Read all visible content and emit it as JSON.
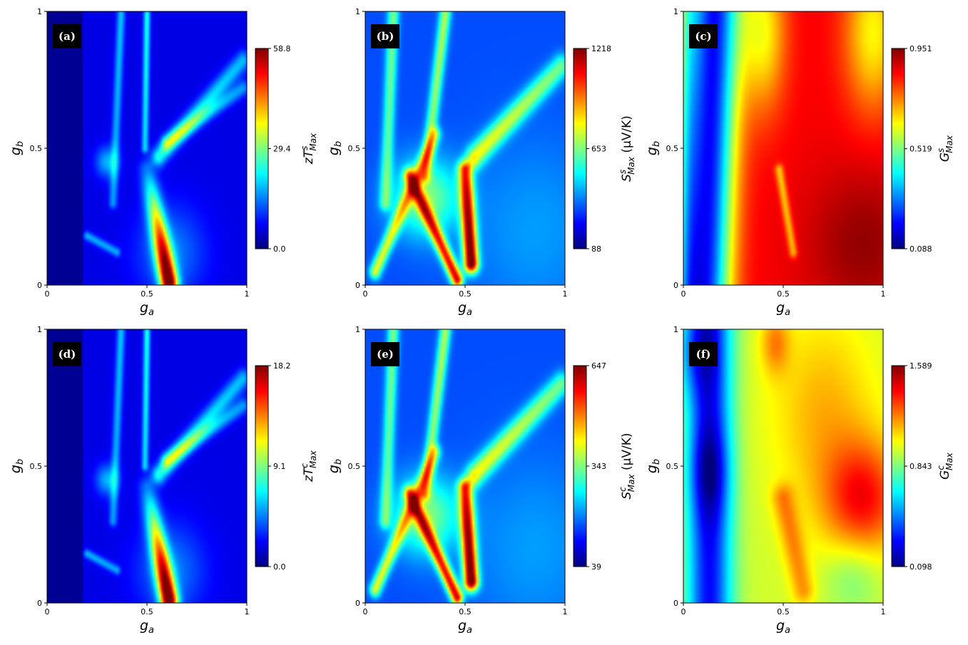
{
  "colormap": "jet",
  "colors": {
    "jet": [
      "#00007f",
      "#0000ff",
      "#007fff",
      "#00ffff",
      "#7fff7f",
      "#ffff00",
      "#ff7f00",
      "#ff0000",
      "#7f0000"
    ]
  },
  "chart_data": [
    {
      "type": "heatmap",
      "panel_label": "(a)",
      "xlabel": "g",
      "xlabel_sub": "a",
      "ylabel": "g",
      "ylabel_sub": "b",
      "xlim": [
        0,
        1
      ],
      "ylim": [
        0,
        1
      ],
      "xticks": [
        "0",
        "0.5",
        "1"
      ],
      "yticks": [
        "0",
        "0.5",
        "1"
      ],
      "colorbar": {
        "label": "zT",
        "label_sup": "s",
        "label_sub": "Max",
        "label_unit": "",
        "min": 0.0,
        "max": 58.8,
        "ticks": [
          "0.0",
          "29.4",
          "58.8"
        ]
      },
      "field": {
        "base": 0.1,
        "features": [
          {
            "kind": "ridge",
            "x0": 0.61,
            "y0": 0.01,
            "x1": 0.5,
            "y1": 0.42,
            "width": 0.03,
            "peak": 0.95,
            "fade": 0.85
          },
          {
            "kind": "ridge",
            "x0": 0.56,
            "y0": 0.47,
            "x1": 0.98,
            "y1": 0.82,
            "width": 0.025,
            "peak": 0.3,
            "fade": 0.3
          },
          {
            "kind": "ridge",
            "x0": 0.6,
            "y0": 0.52,
            "x1": 0.98,
            "y1": 0.72,
            "width": 0.02,
            "peak": 0.25,
            "fade": 0.3
          },
          {
            "kind": "ridge",
            "x0": 0.5,
            "y0": 0.99,
            "x1": 0.49,
            "y1": 0.5,
            "width": 0.012,
            "peak": 0.3,
            "fade": 0.2
          },
          {
            "kind": "ridge",
            "x0": 0.37,
            "y0": 0.99,
            "x1": 0.33,
            "y1": 0.3,
            "width": 0.015,
            "peak": 0.22,
            "fade": 0.2
          },
          {
            "kind": "ridge",
            "x0": 0.2,
            "y0": 0.18,
            "x1": 0.35,
            "y1": 0.12,
            "width": 0.012,
            "peak": 0.2,
            "fade": 0.1
          },
          {
            "kind": "blob",
            "x": 0.3,
            "y": 0.45,
            "rx": 0.04,
            "ry": 0.04,
            "peak": 0.2
          },
          {
            "kind": "blob",
            "x": 0.62,
            "y": 0.12,
            "rx": 0.12,
            "ry": 0.12,
            "peak": 0.15
          },
          {
            "kind": "dark",
            "x0": 0.0,
            "x1": 0.18,
            "peak": 0.08
          }
        ]
      }
    },
    {
      "type": "heatmap",
      "panel_label": "(b)",
      "xlabel": "g",
      "xlabel_sub": "a",
      "ylabel": "g",
      "ylabel_sub": "b",
      "xlim": [
        0,
        1
      ],
      "ylim": [
        0,
        1
      ],
      "xticks": [
        "0",
        "0.5",
        "1"
      ],
      "yticks": [
        "0",
        "0.5",
        "1"
      ],
      "colorbar": {
        "label": "S",
        "label_sup": "s",
        "label_sub": "Max",
        "label_unit": " (μV/K)",
        "min": 88,
        "max": 1218,
        "ticks": [
          "88",
          "653",
          "1218"
        ]
      },
      "field": {
        "base": 0.2,
        "features": [
          {
            "kind": "ridge",
            "x0": 0.53,
            "y0": 0.08,
            "x1": 0.5,
            "y1": 0.42,
            "width": 0.025,
            "peak": 0.85,
            "fade": 0.3
          },
          {
            "kind": "ridge",
            "x0": 0.46,
            "y0": 0.02,
            "x1": 0.22,
            "y1": 0.4,
            "width": 0.02,
            "peak": 0.7,
            "fade": 0.4
          },
          {
            "kind": "ridge",
            "x0": 0.05,
            "y0": 0.05,
            "x1": 0.35,
            "y1": 0.55,
            "width": 0.02,
            "peak": 0.4,
            "fade": 0.3
          },
          {
            "kind": "ridge",
            "x0": 0.55,
            "y0": 0.47,
            "x1": 0.98,
            "y1": 0.8,
            "width": 0.03,
            "peak": 0.4,
            "fade": 0.3
          },
          {
            "kind": "ridge",
            "x0": 0.4,
            "y0": 0.99,
            "x1": 0.3,
            "y1": 0.4,
            "width": 0.02,
            "peak": 0.35,
            "fade": 0.2
          },
          {
            "kind": "ridge",
            "x0": 0.14,
            "y0": 0.99,
            "x1": 0.1,
            "y1": 0.3,
            "width": 0.02,
            "peak": 0.3,
            "fade": 0.2
          },
          {
            "kind": "blob",
            "x": 0.3,
            "y": 0.32,
            "rx": 0.12,
            "ry": 0.1,
            "peak": 0.3
          },
          {
            "kind": "blob",
            "x": 0.85,
            "y": 0.2,
            "rx": 0.25,
            "ry": 0.25,
            "peak": 0.08
          }
        ]
      }
    },
    {
      "type": "heatmap",
      "panel_label": "(c)",
      "xlabel": "g",
      "xlabel_sub": "a",
      "ylabel": "g",
      "ylabel_sub": "b",
      "xlim": [
        0,
        1
      ],
      "ylim": [
        0,
        1
      ],
      "xticks": [
        "0",
        "0.5",
        "1"
      ],
      "yticks": [
        "0",
        "0.5",
        "1"
      ],
      "colorbar": {
        "label": "G",
        "label_sup": "s",
        "label_sub": "Max",
        "label_unit": "",
        "min": 0.088,
        "max": 0.951,
        "ticks": [
          "0.088",
          "0.519",
          "0.951"
        ]
      },
      "field": {
        "base": 0.88,
        "features": [
          {
            "kind": "valley",
            "x": 0.13,
            "width": 0.09,
            "depth": 0.75,
            "tilt": 0.05
          },
          {
            "kind": "valley",
            "x": 0.02,
            "width": 0.04,
            "depth": 0.2,
            "tilt": 0.0
          },
          {
            "kind": "blob",
            "x": 0.4,
            "y": 0.92,
            "rx": 0.08,
            "ry": 0.2,
            "peak": -0.25
          },
          {
            "kind": "blob",
            "x": 0.95,
            "y": 0.92,
            "rx": 0.1,
            "ry": 0.2,
            "peak": -0.25
          },
          {
            "kind": "blob",
            "x": 0.9,
            "y": 0.15,
            "rx": 0.2,
            "ry": 0.2,
            "peak": 0.1
          },
          {
            "kind": "ridge",
            "x0": 0.55,
            "y0": 0.12,
            "x1": 0.48,
            "y1": 0.42,
            "width": 0.015,
            "peak": -0.2,
            "fade": 0.0
          }
        ]
      }
    },
    {
      "type": "heatmap",
      "panel_label": "(d)",
      "xlabel": "g",
      "xlabel_sub": "a",
      "ylabel": "g",
      "ylabel_sub": "b",
      "xlim": [
        0,
        1
      ],
      "ylim": [
        0,
        1
      ],
      "xticks": [
        "0",
        "0.5",
        "1"
      ],
      "yticks": [
        "0",
        "0.5",
        "1"
      ],
      "colorbar": {
        "label": "zT",
        "label_sup": "c",
        "label_sub": "Max",
        "label_unit": "",
        "min": 0.0,
        "max": 18.2,
        "ticks": [
          "0.0",
          "9.1",
          "18.2"
        ]
      },
      "field": {
        "base": 0.1,
        "features": [
          {
            "kind": "ridge",
            "x0": 0.61,
            "y0": 0.01,
            "x1": 0.5,
            "y1": 0.42,
            "width": 0.03,
            "peak": 0.95,
            "fade": 0.85
          },
          {
            "kind": "ridge",
            "x0": 0.56,
            "y0": 0.47,
            "x1": 0.98,
            "y1": 0.82,
            "width": 0.025,
            "peak": 0.3,
            "fade": 0.3
          },
          {
            "kind": "ridge",
            "x0": 0.6,
            "y0": 0.52,
            "x1": 0.98,
            "y1": 0.72,
            "width": 0.02,
            "peak": 0.25,
            "fade": 0.3
          },
          {
            "kind": "ridge",
            "x0": 0.5,
            "y0": 0.99,
            "x1": 0.49,
            "y1": 0.5,
            "width": 0.012,
            "peak": 0.3,
            "fade": 0.2
          },
          {
            "kind": "ridge",
            "x0": 0.37,
            "y0": 0.99,
            "x1": 0.33,
            "y1": 0.3,
            "width": 0.015,
            "peak": 0.22,
            "fade": 0.2
          },
          {
            "kind": "ridge",
            "x0": 0.2,
            "y0": 0.18,
            "x1": 0.35,
            "y1": 0.12,
            "width": 0.012,
            "peak": 0.2,
            "fade": 0.1
          },
          {
            "kind": "blob",
            "x": 0.3,
            "y": 0.45,
            "rx": 0.04,
            "ry": 0.04,
            "peak": 0.2
          },
          {
            "kind": "blob",
            "x": 0.62,
            "y": 0.12,
            "rx": 0.12,
            "ry": 0.12,
            "peak": 0.15
          },
          {
            "kind": "dark",
            "x0": 0.0,
            "x1": 0.18,
            "peak": 0.08
          }
        ]
      }
    },
    {
      "type": "heatmap",
      "panel_label": "(e)",
      "xlabel": "g",
      "xlabel_sub": "a",
      "ylabel": "g",
      "ylabel_sub": "b",
      "xlim": [
        0,
        1
      ],
      "ylim": [
        0,
        1
      ],
      "xticks": [
        "0",
        "0.5",
        "1"
      ],
      "yticks": [
        "0",
        "0.5",
        "1"
      ],
      "colorbar": {
        "label": "S",
        "label_sup": "c",
        "label_sub": "Max",
        "label_unit": " (μV/K)",
        "min": 39,
        "max": 647,
        "ticks": [
          "39",
          "343",
          "647"
        ]
      },
      "field": {
        "base": 0.2,
        "features": [
          {
            "kind": "ridge",
            "x0": 0.53,
            "y0": 0.08,
            "x1": 0.5,
            "y1": 0.42,
            "width": 0.025,
            "peak": 0.85,
            "fade": 0.3
          },
          {
            "kind": "ridge",
            "x0": 0.46,
            "y0": 0.02,
            "x1": 0.22,
            "y1": 0.4,
            "width": 0.02,
            "peak": 0.7,
            "fade": 0.4
          },
          {
            "kind": "ridge",
            "x0": 0.05,
            "y0": 0.05,
            "x1": 0.35,
            "y1": 0.55,
            "width": 0.02,
            "peak": 0.4,
            "fade": 0.3
          },
          {
            "kind": "ridge",
            "x0": 0.55,
            "y0": 0.47,
            "x1": 0.98,
            "y1": 0.8,
            "width": 0.03,
            "peak": 0.4,
            "fade": 0.3
          },
          {
            "kind": "ridge",
            "x0": 0.4,
            "y0": 0.99,
            "x1": 0.3,
            "y1": 0.4,
            "width": 0.02,
            "peak": 0.35,
            "fade": 0.2
          },
          {
            "kind": "ridge",
            "x0": 0.14,
            "y0": 0.99,
            "x1": 0.1,
            "y1": 0.3,
            "width": 0.02,
            "peak": 0.3,
            "fade": 0.2
          },
          {
            "kind": "blob",
            "x": 0.3,
            "y": 0.32,
            "rx": 0.12,
            "ry": 0.1,
            "peak": 0.3
          },
          {
            "kind": "blob",
            "x": 0.85,
            "y": 0.2,
            "rx": 0.25,
            "ry": 0.25,
            "peak": 0.08
          }
        ]
      }
    },
    {
      "type": "heatmap",
      "panel_label": "(f)",
      "xlabel": "g",
      "xlabel_sub": "a",
      "ylabel": "g",
      "ylabel_sub": "b",
      "xlim": [
        0,
        1
      ],
      "ylim": [
        0,
        1
      ],
      "xticks": [
        "0",
        "0.5",
        "1"
      ],
      "yticks": [
        "0",
        "0.5",
        "1"
      ],
      "colorbar": {
        "label": "G",
        "label_sup": "c",
        "label_sub": "Max",
        "label_unit": "",
        "min": 0.098,
        "max": 1.589,
        "ticks": [
          "0.098",
          "0.843",
          "1.589"
        ]
      },
      "field": {
        "base": 0.58,
        "features": [
          {
            "kind": "valley",
            "x": 0.13,
            "width": 0.08,
            "depth": 0.45,
            "tilt": 0.0
          },
          {
            "kind": "blob",
            "x": 0.13,
            "y": 0.48,
            "rx": 0.07,
            "ry": 0.12,
            "peak": -0.15
          },
          {
            "kind": "blob",
            "x": 0.05,
            "y": 0.92,
            "rx": 0.08,
            "ry": 0.12,
            "peak": -0.15
          },
          {
            "kind": "blob",
            "x": 0.9,
            "y": 0.38,
            "rx": 0.14,
            "ry": 0.15,
            "peak": 0.28
          },
          {
            "kind": "blob",
            "x": 0.7,
            "y": 0.7,
            "rx": 0.18,
            "ry": 0.25,
            "peak": 0.12
          },
          {
            "kind": "blob",
            "x": 0.46,
            "y": 0.95,
            "rx": 0.05,
            "ry": 0.08,
            "peak": 0.15
          },
          {
            "kind": "ridge",
            "x0": 0.6,
            "y0": 0.05,
            "x1": 0.5,
            "y1": 0.38,
            "width": 0.04,
            "peak": 0.15,
            "fade": 0.0
          },
          {
            "kind": "blob",
            "x": 0.85,
            "y": 0.1,
            "rx": 0.1,
            "ry": 0.1,
            "peak": -0.1
          }
        ]
      }
    }
  ]
}
